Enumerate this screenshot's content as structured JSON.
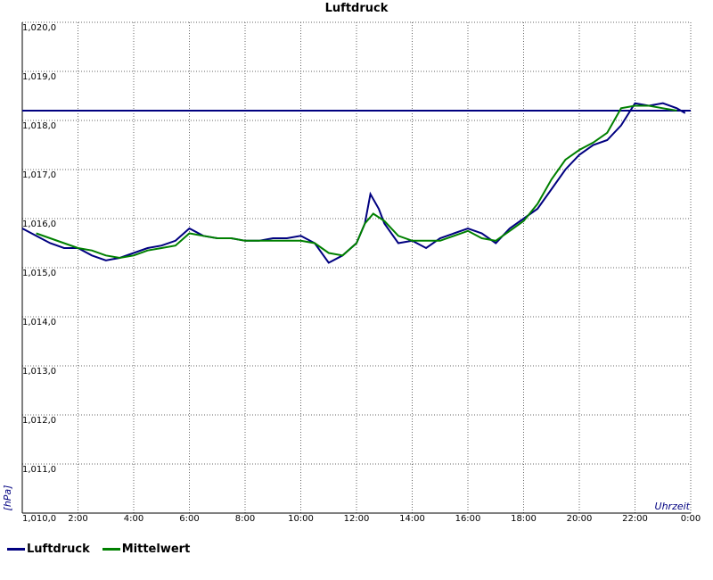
{
  "chart_data": {
    "type": "line",
    "title": "Luftdruck",
    "ylabel": "[hPa]",
    "xlabel": "Uhrzeit",
    "ylim": [
      1010.0,
      1020.0
    ],
    "xlim": [
      0,
      24
    ],
    "grid": true,
    "legend_position": "bottom-left",
    "y_ticks": [
      "1,010,0",
      "1,011,0",
      "1,012,0",
      "1,013,0",
      "1,014,0",
      "1,015,0",
      "1,016,0",
      "1,017,0",
      "1,018,0",
      "1,019,0",
      "1,020,0"
    ],
    "x_ticks": [
      "2:00",
      "4:00",
      "6:00",
      "8:00",
      "10:00",
      "12:00",
      "14:00",
      "16:00",
      "18:00",
      "20:00",
      "22:00",
      "0:00"
    ],
    "reference_line": 1018.2,
    "series": [
      {
        "name": "Luftdruck",
        "color": "#000080",
        "x": [
          0,
          0.5,
          1,
          1.5,
          2,
          2.5,
          3,
          3.5,
          4,
          4.5,
          5,
          5.5,
          6,
          6.5,
          7,
          7.5,
          8,
          8.5,
          9,
          9.5,
          10,
          10.5,
          11,
          11.5,
          12,
          12.3,
          12.5,
          12.8,
          13,
          13.5,
          14,
          14.5,
          15,
          15.5,
          16,
          16.5,
          17,
          17.5,
          18,
          18.5,
          19,
          19.5,
          20,
          20.5,
          21,
          21.5,
          22,
          22.5,
          23,
          23.5,
          23.8
        ],
        "values": [
          1015.8,
          1015.65,
          1015.5,
          1015.4,
          1015.4,
          1015.25,
          1015.15,
          1015.2,
          1015.3,
          1015.4,
          1015.45,
          1015.55,
          1015.8,
          1015.65,
          1015.6,
          1015.6,
          1015.55,
          1015.55,
          1015.6,
          1015.6,
          1015.65,
          1015.5,
          1015.1,
          1015.25,
          1015.5,
          1015.9,
          1016.5,
          1016.2,
          1015.9,
          1015.5,
          1015.55,
          1015.4,
          1015.6,
          1015.7,
          1015.8,
          1015.7,
          1015.5,
          1015.8,
          1016.0,
          1016.2,
          1016.6,
          1017.0,
          1017.3,
          1017.5,
          1017.6,
          1017.9,
          1018.35,
          1018.3,
          1018.35,
          1018.25,
          1018.15
        ]
      },
      {
        "name": "Mittelwert",
        "color": "#008000",
        "x": [
          0.5,
          1,
          1.5,
          2,
          2.5,
          3,
          3.5,
          4,
          4.5,
          5,
          5.5,
          6,
          6.5,
          7,
          7.5,
          8,
          8.5,
          9,
          9.5,
          10,
          10.5,
          11,
          11.5,
          12,
          12.3,
          12.6,
          13,
          13.5,
          14,
          14.5,
          15,
          15.5,
          16,
          16.5,
          17,
          17.5,
          18,
          18.5,
          19,
          19.5,
          20,
          20.5,
          21,
          21.5,
          22,
          22.5,
          23,
          23.5
        ],
        "values": [
          1015.7,
          1015.6,
          1015.5,
          1015.4,
          1015.35,
          1015.25,
          1015.2,
          1015.25,
          1015.35,
          1015.4,
          1015.45,
          1015.7,
          1015.65,
          1015.6,
          1015.6,
          1015.55,
          1015.55,
          1015.55,
          1015.55,
          1015.55,
          1015.5,
          1015.3,
          1015.25,
          1015.5,
          1015.9,
          1016.1,
          1015.95,
          1015.65,
          1015.55,
          1015.55,
          1015.55,
          1015.65,
          1015.75,
          1015.6,
          1015.55,
          1015.75,
          1015.95,
          1016.3,
          1016.8,
          1017.2,
          1017.4,
          1017.55,
          1017.75,
          1018.25,
          1018.3,
          1018.3,
          1018.25,
          1018.2
        ]
      }
    ]
  }
}
